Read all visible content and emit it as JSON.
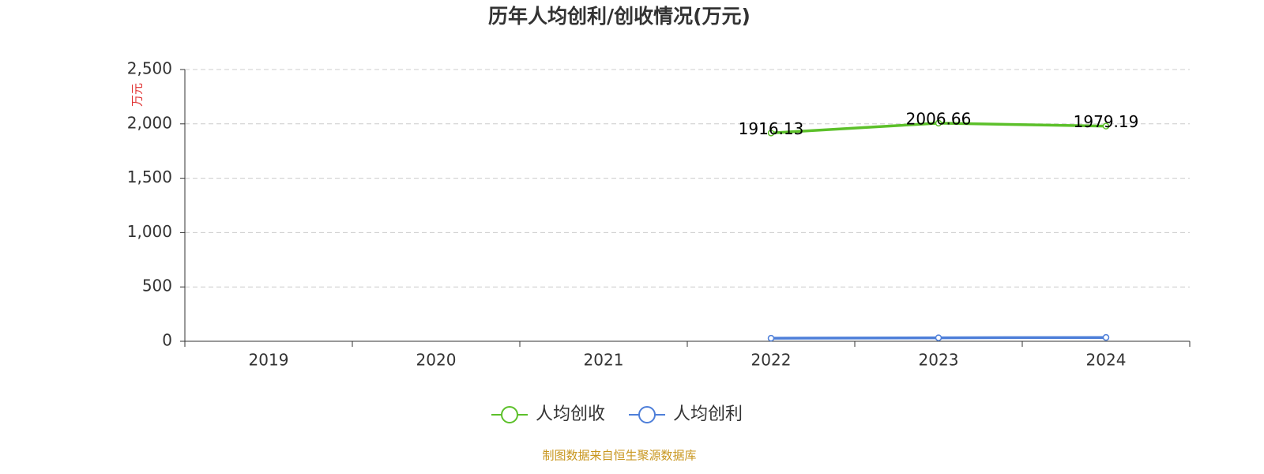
{
  "chart_data": {
    "type": "line",
    "title": "历年人均创利/创收情况(万元)",
    "y_axis_label": "万元",
    "categories": [
      "2019",
      "2020",
      "2021",
      "2022",
      "2023",
      "2024"
    ],
    "series": [
      {
        "name": "人均创收",
        "color": "#5cc02a",
        "values": [
          null,
          null,
          null,
          1916.13,
          2006.66,
          1979.19
        ]
      },
      {
        "name": "人均创利",
        "color": "#4e7fd9",
        "values": [
          null,
          null,
          null,
          28,
          32,
          35
        ]
      }
    ],
    "ylim": [
      0,
      2500
    ],
    "yticks": [
      0,
      500,
      {
        "value": 1000,
        "label": "1,000"
      },
      {
        "value": 1500,
        "label": "1,500"
      },
      {
        "value": 2000,
        "label": "2,000"
      },
      {
        "value": 2500,
        "label": "2,500"
      }
    ],
    "grid": true,
    "source": "制图数据来自恒生聚源数据库"
  }
}
